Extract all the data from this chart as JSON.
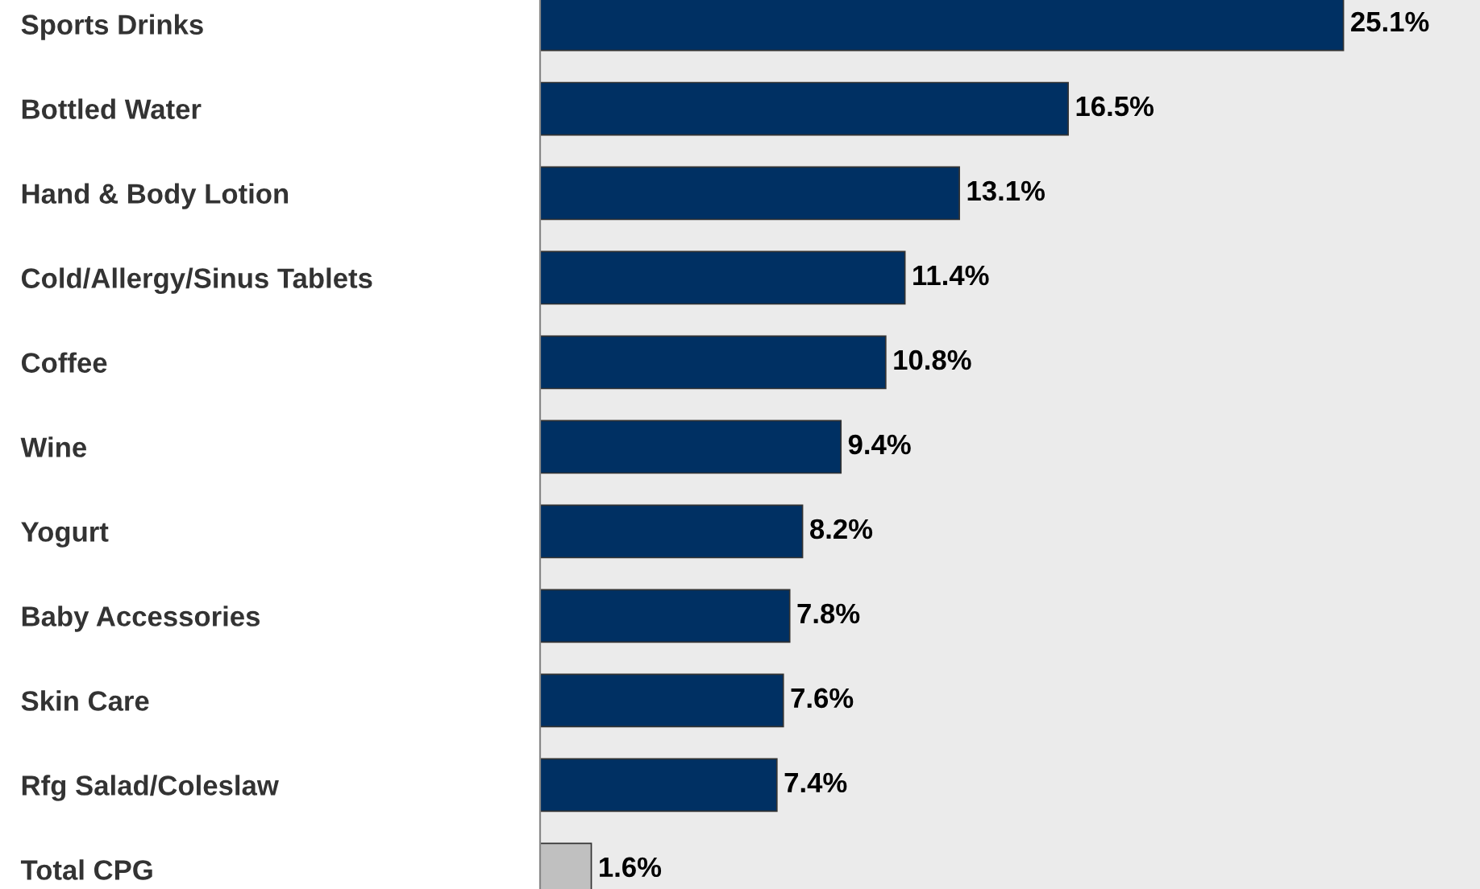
{
  "chart_data": {
    "type": "bar",
    "orientation": "horizontal",
    "categories": [
      "Sports Drinks",
      "Bottled Water",
      "Hand & Body Lotion",
      "Cold/Allergy/Sinus Tablets",
      "Coffee",
      "Wine",
      "Yogurt",
      "Baby Accessories",
      "Skin Care",
      "Rfg Salad/Coleslaw",
      "Total CPG"
    ],
    "values": [
      25.1,
      16.5,
      13.1,
      11.4,
      10.8,
      9.4,
      8.2,
      7.8,
      7.6,
      7.4,
      1.6
    ],
    "colors": [
      "#003063",
      "#003063",
      "#003063",
      "#003063",
      "#003063",
      "#003063",
      "#003063",
      "#003063",
      "#003063",
      "#003063",
      "#c0c0c0"
    ],
    "value_labels": [
      "25.1%",
      "16.5%",
      "13.1%",
      "11.4%",
      "10.8%",
      "9.4%",
      "8.2%",
      "7.8%",
      "7.6%",
      "7.4%",
      "1.6%"
    ],
    "grid": false,
    "legend": false
  }
}
